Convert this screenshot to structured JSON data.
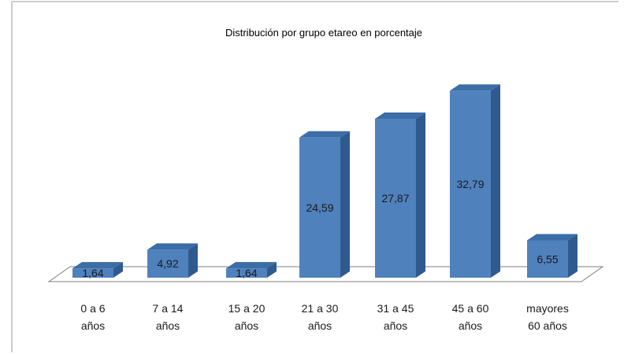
{
  "chart_data": {
    "type": "bar",
    "title": "Distribución por grupo etareo en porcentaje",
    "categories": [
      [
        "0 a 6",
        "años"
      ],
      [
        "7 a 14",
        "años"
      ],
      [
        "15 a 20",
        "años"
      ],
      [
        "21 a 30",
        "años"
      ],
      [
        "31 a 45",
        "años"
      ],
      [
        "45 a 60",
        "años"
      ],
      [
        "mayores",
        "60 años"
      ]
    ],
    "values": [
      1.64,
      4.92,
      1.64,
      24.59,
      27.87,
      32.79,
      6.55
    ],
    "value_labels": [
      "1,64",
      "4,92",
      "1,64",
      "24,59",
      "27,87",
      "32,79",
      "6,55"
    ],
    "xlabel": "",
    "ylabel": "",
    "ylim": [
      0,
      35
    ],
    "grid": false,
    "legend": "none",
    "style": "3d-column",
    "colors": {
      "bar_front": "#4f81bd",
      "bar_side": "#2f5a8e",
      "bar_top": "#3b6da7",
      "frame": "#9a9a9a",
      "floor_edge": "#7f7f7f"
    }
  }
}
